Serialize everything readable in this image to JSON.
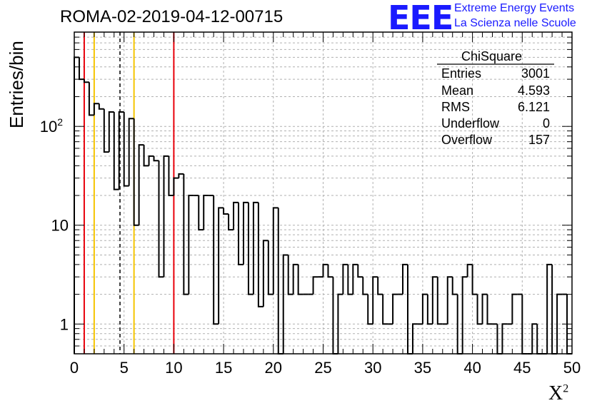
{
  "header": {
    "title": "ROMA-02-2019-04-12-00715",
    "logo_text": "EEE",
    "logo_line1": "Extreme Energy Events",
    "logo_line2": "La Scienza nelle Scuole"
  },
  "stats_box": {
    "title": "ChiSquare",
    "rows": [
      {
        "label": "Entries",
        "value": "3001"
      },
      {
        "label": "Mean",
        "value": "4.593"
      },
      {
        "label": "RMS",
        "value": "6.121"
      },
      {
        "label": "Underflow",
        "value": "0"
      },
      {
        "label": "Overflow",
        "value": "157"
      }
    ]
  },
  "chart_data": {
    "type": "histogram",
    "title": "ROMA-02-2019-04-12-00715",
    "xlabel": "X²",
    "ylabel": "Entries/bin",
    "xlim": [
      0,
      50
    ],
    "ylim": [
      0.5,
      900
    ],
    "y_scale": "log",
    "grid": true,
    "bin_width": 0.5,
    "x_ticks": [
      "0",
      "5",
      "10",
      "15",
      "20",
      "25",
      "30",
      "35",
      "40",
      "45",
      "50"
    ],
    "y_tick_labels": [
      "1",
      "10",
      "10²"
    ],
    "values": [
      500,
      300,
      280,
      130,
      170,
      150,
      55,
      140,
      23,
      140,
      25,
      120,
      10,
      65,
      40,
      50,
      45,
      3,
      50,
      20,
      30,
      33,
      2,
      20,
      20,
      9,
      20,
      20,
      1,
      15,
      13,
      9,
      17,
      4,
      17,
      2,
      17,
      1.5,
      7,
      2,
      15,
      0.5,
      5,
      2,
      4,
      2,
      2,
      2,
      3,
      3,
      4,
      3,
      0.5,
      2,
      4,
      2,
      4,
      3,
      2,
      1,
      3,
      2,
      1,
      1,
      2,
      2,
      4,
      0.5,
      1,
      1,
      2,
      1,
      3,
      1,
      1,
      3,
      2,
      0.5,
      3,
      4,
      2,
      1,
      2,
      1,
      1,
      0.5,
      1,
      1,
      2,
      2,
      0.5,
      0.5,
      1,
      0.5,
      0.5,
      4,
      0.5,
      2,
      2,
      0.5
    ],
    "vertical_lines": [
      {
        "x": 1.0,
        "color": "#e8000b",
        "style": "solid"
      },
      {
        "x": 2.0,
        "color": "#f5c400",
        "style": "solid"
      },
      {
        "x": 4.593,
        "color": "#000000",
        "style": "dashed"
      },
      {
        "x": 6.0,
        "color": "#f5c400",
        "style": "solid"
      },
      {
        "x": 10.0,
        "color": "#e8000b",
        "style": "solid"
      }
    ]
  }
}
